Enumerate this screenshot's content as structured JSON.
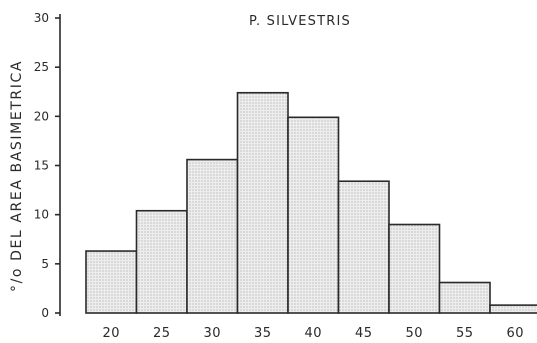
{
  "chart_data": {
    "type": "bar",
    "title": "P. SILVESTRIS",
    "ylabel": "°/o DEL AREA BASIMETRICA",
    "xlabel": "",
    "categories": [
      "20",
      "25",
      "30",
      "35",
      "40",
      "45",
      "50",
      "55",
      "60"
    ],
    "values": [
      6.3,
      10.4,
      15.6,
      22.4,
      19.9,
      13.4,
      9.0,
      3.1,
      0.8
    ],
    "ylim": [
      0,
      30
    ],
    "yticks": [
      "0",
      "5",
      "10",
      "15",
      "20",
      "25",
      "30"
    ],
    "grid": false,
    "bar_fill": "#e9e9e9",
    "stroke_color": "#2a2a2a"
  }
}
